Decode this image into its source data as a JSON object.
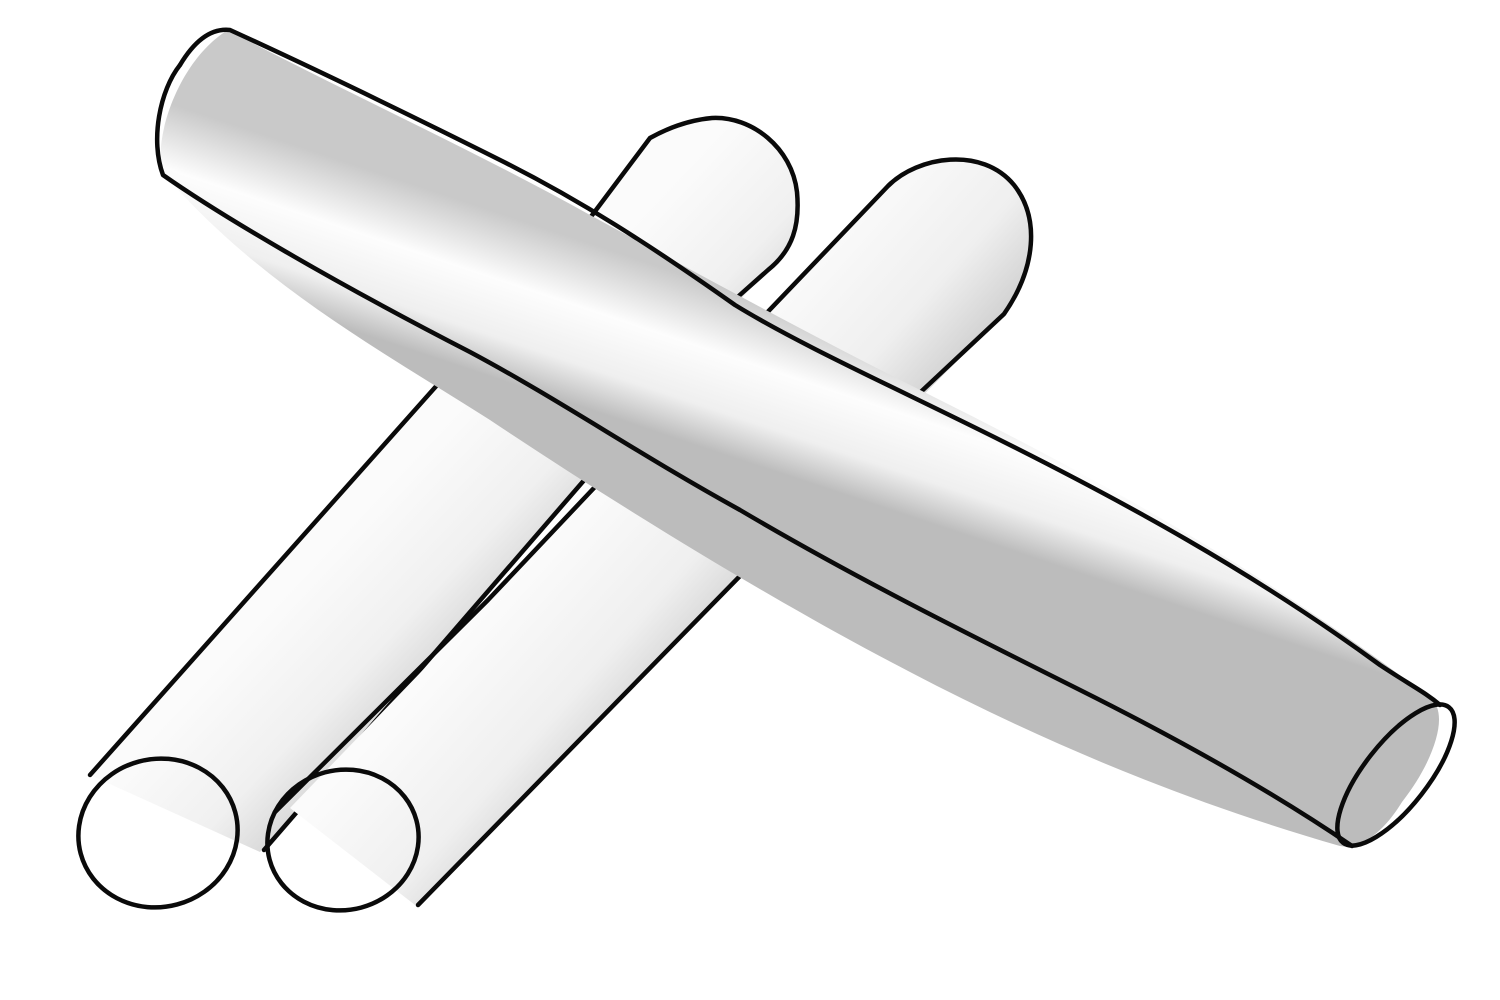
{
  "illustration": {
    "subject": "chalk sticks",
    "count": 3,
    "style": "line art with grayscale shading",
    "colors": {
      "background": "#ffffff",
      "outline": "#0a0a0a",
      "body_light": "#fbfbfb",
      "body_shade": "#c9c9c9",
      "end_face": "#dcdcdc"
    }
  }
}
